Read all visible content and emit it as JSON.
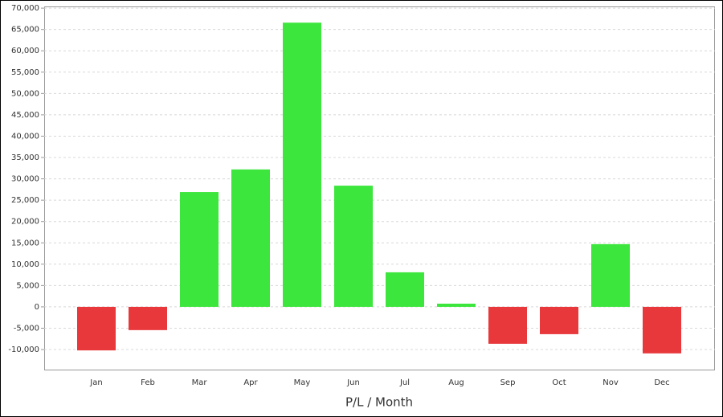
{
  "chart_data": {
    "type": "bar",
    "x_label": "P/L / Month",
    "categories": [
      "Jan",
      "Feb",
      "Mar",
      "Apr",
      "May",
      "Jun",
      "Jul",
      "Aug",
      "Sep",
      "Oct",
      "Nov",
      "Dec"
    ],
    "values": [
      -10200,
      -5450,
      26900,
      32200,
      66600,
      28400,
      8100,
      750,
      -8650,
      -6400,
      14700,
      -10900
    ],
    "positive_color": "#3de63d",
    "negative_color": "#e8383b",
    "ylim": [
      -14700,
      70400
    ],
    "yticks": [
      {
        "value": -10000,
        "label": "-10,000"
      },
      {
        "value": -5000,
        "label": "-5,000"
      },
      0,
      {
        "value": 5000,
        "label": "5,000"
      },
      {
        "value": 10000,
        "label": "10,000"
      },
      {
        "value": 15000,
        "label": "15,000"
      },
      {
        "value": 20000,
        "label": "20,000"
      },
      {
        "value": 25000,
        "label": "25,000"
      },
      {
        "value": 30000,
        "label": "30,000"
      },
      {
        "value": 35000,
        "label": "35,000"
      },
      {
        "value": 40000,
        "label": "40,000"
      },
      {
        "value": 45000,
        "label": "45,000"
      },
      {
        "value": 50000,
        "label": "50,000"
      },
      {
        "value": 55000,
        "label": "55,000"
      },
      {
        "value": 60000,
        "label": "60,000"
      },
      {
        "value": 65000,
        "label": "65,000"
      },
      {
        "value": 70000,
        "label": "70,000"
      }
    ],
    "grid": true
  }
}
